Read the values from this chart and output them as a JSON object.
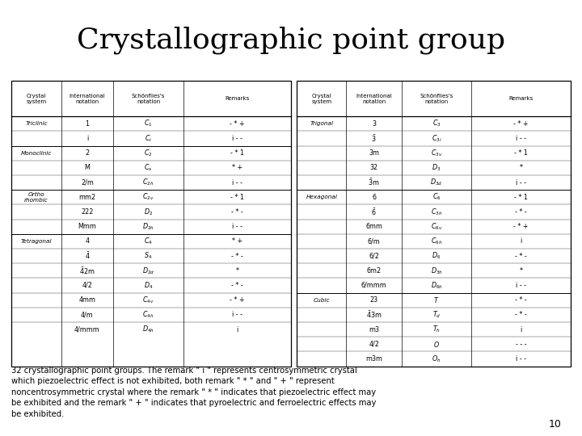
{
  "title": "Crystallographic point group",
  "title_bg": "#FFD700",
  "title_fontsize": 26,
  "caption": "32 crystallographic point groups. The remark \" i \" represents centrosymmetric crystal\nwhich piezoelectric effect is not exhibited, both remark \" * \" and \" + \" represent\nnoncentrosymmetric crystal where the remark \" * \" indicates that piezoelectric effect may\nbe exhibited and the remark \" + \" indicates that pyroelectric and ferroelectric effects may\nbe exhibited.",
  "page_number": "10",
  "col_headers": [
    "Crystal\nsystem",
    "International\nnotation",
    "Schönflies's\nnotation",
    "Remarks"
  ],
  "left_table": [
    [
      "Triclinic",
      "1",
      "$C_1$",
      "- * +"
    ],
    [
      "",
      "i",
      "$C_i$",
      "i - -"
    ],
    [
      "Monoclinic",
      "2",
      "$C_2$",
      "- * 1"
    ],
    [
      "",
      "M",
      "$C_s$",
      "* +"
    ],
    [
      "",
      "2/m",
      "$C_{2h}$",
      "i - -"
    ],
    [
      "Ortho\nrhombic",
      "mm2",
      "$C_{2v}$",
      "- * 1"
    ],
    [
      "",
      "222",
      "$D_2$",
      "- * -"
    ],
    [
      "",
      "Mmm",
      "$D_{2h}$",
      "i - -"
    ],
    [
      "Tetragonal",
      "4",
      "$C_4$",
      "* +"
    ],
    [
      "",
      "$\\bar{4}$",
      "$S_4$",
      "- * -"
    ],
    [
      "",
      "$\\bar{4}$2m",
      "$D_{2d}$",
      "*"
    ],
    [
      "",
      "4/2",
      "$D_4$",
      "- * -"
    ],
    [
      "",
      "4mm",
      "$C_{4v}$",
      "- * +"
    ],
    [
      "",
      "4/m",
      "$C_{4h}$",
      "i - -"
    ],
    [
      "",
      "4/mmm",
      "$D_{4h}$",
      "i"
    ]
  ],
  "right_table": [
    [
      "Trigonal",
      "3",
      "$C_3$",
      "- * +"
    ],
    [
      "",
      "$\\bar{3}$",
      "$C_{3i}$",
      "i - -"
    ],
    [
      "",
      "3m",
      "$C_{3v}$",
      "- * 1"
    ],
    [
      "",
      "32",
      "$D_3$",
      "*"
    ],
    [
      "",
      "$\\bar{3}$m",
      "$D_{3d}$",
      "i - -"
    ],
    [
      "Hexagonal",
      "6",
      "$C_6$",
      "- * 1"
    ],
    [
      "",
      "$\\bar{6}$",
      "$C_{3h}$",
      "- * -"
    ],
    [
      "",
      "6mm",
      "$C_{6v}$",
      "- * +"
    ],
    [
      "",
      "6/m",
      "$C_{6h}$",
      "i"
    ],
    [
      "",
      "6/2",
      "$D_6$",
      "- * -"
    ],
    [
      "",
      "6m2",
      "$D_{3h}$",
      "*"
    ],
    [
      "",
      "6/mmm",
      "$D_{6h}$",
      "i - -"
    ],
    [
      "Cubic",
      "23",
      "$T$",
      "- * -"
    ],
    [
      "",
      "$\\bar{4}$3m",
      "$T_d$",
      "- * -"
    ],
    [
      "",
      "m3",
      "$T_h$",
      "i"
    ],
    [
      "",
      "4/2",
      "$O$",
      "- - -"
    ],
    [
      "",
      "m3m",
      "$O_h$",
      "i - -"
    ]
  ]
}
